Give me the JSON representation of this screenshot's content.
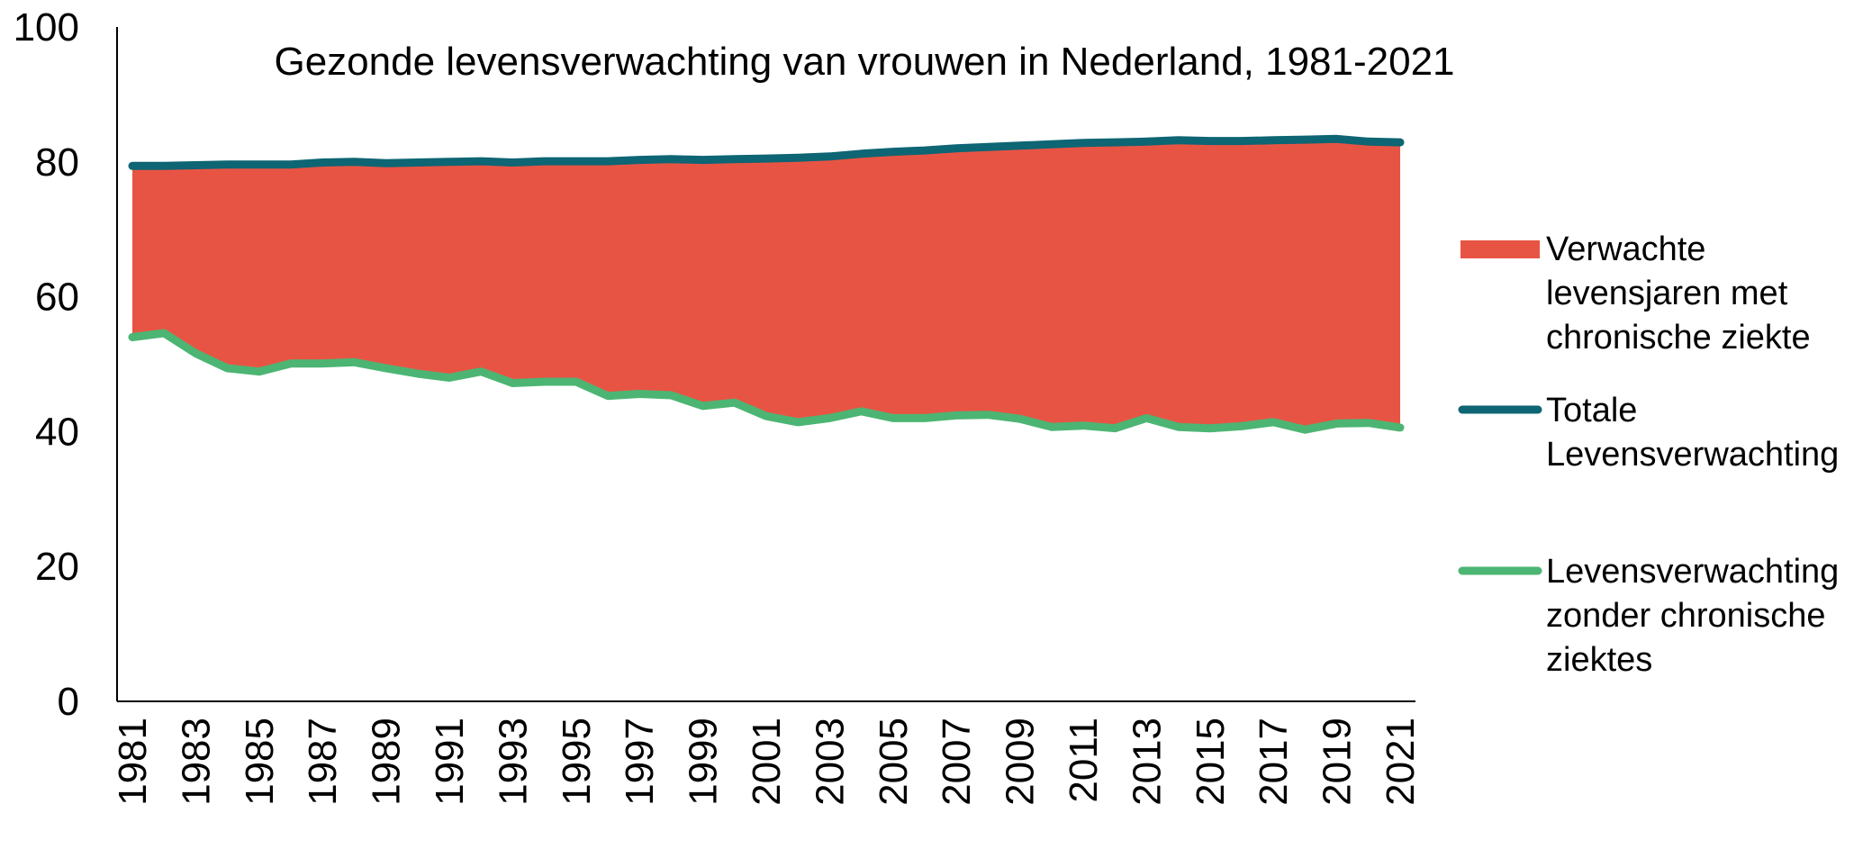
{
  "chart_data": {
    "type": "area",
    "title": "Gezonde levensverwachting van vrouwen in Nederland, 1981-2021",
    "xlabel": "",
    "ylabel": "",
    "ylim": [
      0,
      100
    ],
    "yticks": [
      "0",
      "20",
      "40",
      "60",
      "80",
      "100"
    ],
    "x": [
      1981,
      1982,
      1983,
      1984,
      1985,
      1986,
      1987,
      1988,
      1989,
      1990,
      1991,
      1992,
      1993,
      1994,
      1995,
      1996,
      1997,
      1998,
      1999,
      2000,
      2001,
      2002,
      2003,
      2004,
      2005,
      2006,
      2007,
      2008,
      2009,
      2010,
      2011,
      2012,
      2013,
      2014,
      2015,
      2016,
      2017,
      2018,
      2019,
      2020,
      2021
    ],
    "xtick_labels": [
      "1981",
      "1983",
      "1985",
      "1987",
      "1989",
      "1991",
      "1993",
      "1995",
      "1997",
      "1999",
      "2001",
      "2003",
      "2005",
      "2007",
      "2009",
      "2011",
      "2013",
      "2015",
      "2017",
      "2019",
      "2021"
    ],
    "legend_placement": "right",
    "grid": false,
    "series": [
      {
        "name": "Verwachte levensjaren met chronische ziekte",
        "kind": "band",
        "legend_lines": [
          "Verwachte",
          "levensjaren met",
          "chronische ziekte"
        ],
        "color": "#e85444"
      },
      {
        "name": "Totale Levensverwachting",
        "kind": "line",
        "legend_lines": [
          "Totale",
          "Levensverwachting"
        ],
        "color": "#0e6573",
        "values": [
          79.4,
          79.4,
          79.5,
          79.6,
          79.6,
          79.6,
          79.9,
          80.0,
          79.8,
          79.9,
          80.0,
          80.1,
          79.9,
          80.1,
          80.1,
          80.1,
          80.3,
          80.4,
          80.3,
          80.4,
          80.5,
          80.6,
          80.8,
          81.2,
          81.5,
          81.7,
          82.0,
          82.2,
          82.4,
          82.6,
          82.8,
          82.9,
          83.0,
          83.2,
          83.1,
          83.1,
          83.2,
          83.3,
          83.4,
          83.0,
          82.9
        ]
      },
      {
        "name": "Levensverwachting zonder chronische ziektes",
        "kind": "line",
        "legend_lines": [
          "Levensverwachting",
          "zonder chronische",
          "ziektes"
        ],
        "color": "#4cb573",
        "values": [
          54.0,
          54.6,
          51.6,
          49.4,
          48.9,
          50.1,
          50.1,
          50.3,
          49.4,
          48.6,
          48.0,
          48.9,
          47.2,
          47.4,
          47.4,
          45.3,
          45.6,
          45.4,
          43.8,
          44.3,
          42.3,
          41.4,
          42.0,
          43.0,
          42.0,
          42.0,
          42.4,
          42.5,
          41.9,
          40.7,
          40.9,
          40.5,
          42.0,
          40.7,
          40.5,
          40.8,
          41.4,
          40.3,
          41.2,
          41.3,
          40.6
        ]
      }
    ]
  }
}
